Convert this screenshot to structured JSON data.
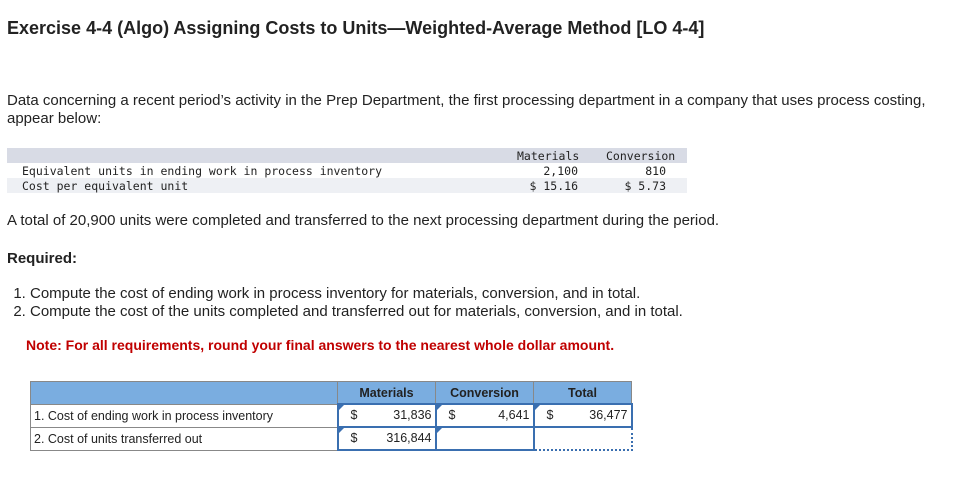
{
  "title": "Exercise 4-4 (Algo) Assigning Costs to Units—Weighted-Average Method [LO 4-4]",
  "intro": "Data concerning a recent period’s activity in the Prep Department, the first processing department in a company that uses process costing, appear below:",
  "data_table": {
    "headers": [
      "Materials",
      "Conversion"
    ],
    "rows": [
      {
        "label": "Equivalent units in ending work in process inventory",
        "materials": "2,100",
        "conversion": "810"
      },
      {
        "label": "Cost per equivalent unit",
        "materials": "$ 15.16",
        "conversion": "$ 5.73"
      }
    ]
  },
  "statement": "A total of 20,900 units were completed and transferred to the next processing department during the period.",
  "required_label": "Required:",
  "requirements": [
    "Compute the cost of ending work in process inventory for materials, conversion, and in total.",
    "Compute the cost of the units completed and transferred out for materials, conversion, and in total."
  ],
  "note": "Note: For all requirements, round your final answers to the nearest whole dollar amount.",
  "answer_table": {
    "headers": [
      "",
      "Materials",
      "Conversion",
      "Total"
    ],
    "currency": "$",
    "rows": [
      {
        "label": "1. Cost of ending work in process inventory",
        "materials": "31,836",
        "conversion": "4,641",
        "total": "36,477"
      },
      {
        "label": "2. Cost of units transferred out",
        "materials": "316,844",
        "conversion": "",
        "total": ""
      }
    ]
  }
}
